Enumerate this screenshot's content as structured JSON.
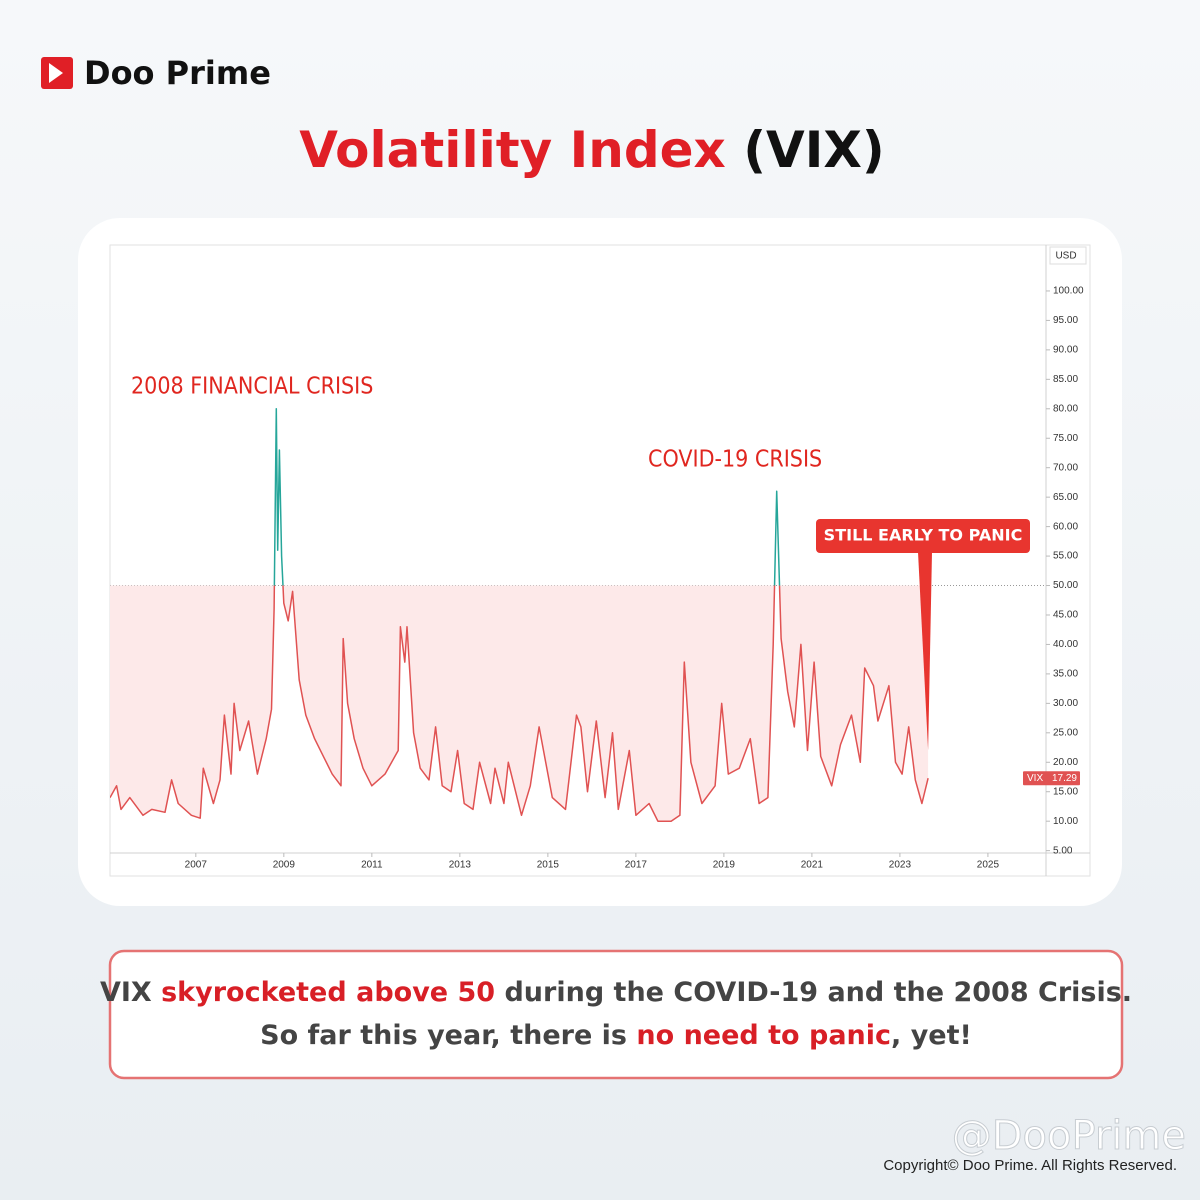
{
  "header": {
    "brand": "Doo Prime",
    "title": [
      {
        "text": "Volatility Index ",
        "highlight": true
      },
      {
        "text": "(VIX)",
        "highlight": false
      }
    ]
  },
  "chart_data": {
    "type": "line",
    "y_unit": "USD",
    "annotations": [
      "2008 FINANCIAL CRISIS",
      "COVID-19 CRISIS",
      "STILL EARLY TO PANIC"
    ],
    "baseline": 50,
    "above_color": "#26a69a",
    "fill_color": "#fde9e9",
    "xlim": [
      2005.05,
      2026.32
    ],
    "xticks": [
      2007,
      2009,
      2011,
      2013,
      2015,
      2017,
      2019,
      2021,
      2023,
      2025
    ],
    "ylim": [
      4.6,
      107.8
    ],
    "yticks": [
      {
        "value": 5,
        "label": "5.00"
      },
      {
        "value": 10,
        "label": "10.00"
      },
      {
        "value": 15,
        "label": "15.00"
      },
      {
        "value": 20,
        "label": "20.00"
      },
      {
        "value": 25,
        "label": "25.00"
      },
      {
        "value": 30,
        "label": "30.00"
      },
      {
        "value": 35,
        "label": "35.00"
      },
      {
        "value": 40,
        "label": "40.00"
      },
      {
        "value": 45,
        "label": "45.00"
      },
      {
        "value": 50,
        "label": "50.00"
      },
      {
        "value": 55,
        "label": "55.00"
      },
      {
        "value": 60,
        "label": "60.00"
      },
      {
        "value": 65,
        "label": "65.00"
      },
      {
        "value": 70,
        "label": "70.00"
      },
      {
        "value": 75,
        "label": "75.00"
      },
      {
        "value": 80,
        "label": "80.00"
      },
      {
        "value": 85,
        "label": "85.00"
      },
      {
        "value": 90,
        "label": "90.00"
      },
      {
        "value": 95,
        "label": "95.00"
      },
      {
        "value": 100,
        "label": "100.00"
      }
    ],
    "grid": false,
    "x": [
      2005.05,
      2005.2,
      2005.3,
      2005.5,
      2005.8,
      2006.0,
      2006.3,
      2006.45,
      2006.6,
      2006.9,
      2007.1,
      2007.17,
      2007.4,
      2007.55,
      2007.65,
      2007.8,
      2007.87,
      2008.0,
      2008.2,
      2008.4,
      2008.6,
      2008.72,
      2008.78,
      2008.83,
      2008.86,
      2008.9,
      2008.95,
      2009.0,
      2009.1,
      2009.2,
      2009.35,
      2009.5,
      2009.7,
      2009.9,
      2010.1,
      2010.3,
      2010.35,
      2010.45,
      2010.6,
      2010.8,
      2011.0,
      2011.3,
      2011.6,
      2011.65,
      2011.75,
      2011.8,
      2011.95,
      2012.1,
      2012.3,
      2012.45,
      2012.6,
      2012.8,
      2012.95,
      2013.1,
      2013.3,
      2013.45,
      2013.7,
      2013.8,
      2014.0,
      2014.1,
      2014.4,
      2014.6,
      2014.8,
      2014.95,
      2015.1,
      2015.4,
      2015.65,
      2015.75,
      2015.9,
      2016.1,
      2016.3,
      2016.47,
      2016.6,
      2016.85,
      2017.0,
      2017.3,
      2017.5,
      2017.8,
      2018.0,
      2018.1,
      2018.25,
      2018.5,
      2018.8,
      2018.95,
      2019.1,
      2019.35,
      2019.6,
      2019.8,
      2020.0,
      2020.12,
      2020.2,
      2020.3,
      2020.45,
      2020.6,
      2020.75,
      2020.9,
      2021.05,
      2021.2,
      2021.45,
      2021.65,
      2021.9,
      2022.1,
      2022.2,
      2022.4,
      2022.5,
      2022.75,
      2022.9,
      2023.05,
      2023.2,
      2023.35,
      2023.5,
      2023.64
    ],
    "series": [
      {
        "name": "VIX",
        "color": "#e05252",
        "values": [
          14,
          16,
          12,
          14,
          11,
          12,
          11.5,
          17,
          13,
          11,
          10.5,
          19,
          13,
          17,
          28,
          18,
          30,
          22,
          27,
          18,
          24,
          29,
          46,
          80,
          56,
          73,
          55,
          47,
          44,
          49,
          34,
          28,
          24,
          21,
          18,
          16,
          41,
          30,
          24,
          19,
          16,
          18,
          22,
          43,
          37,
          43,
          25,
          19,
          17,
          26,
          16,
          15,
          22,
          13,
          12,
          20,
          13,
          19,
          13,
          20,
          11,
          16,
          26,
          20,
          14,
          12,
          28,
          26,
          15,
          27,
          14,
          25,
          12,
          22,
          11,
          13,
          10,
          10,
          11,
          37,
          20,
          13,
          16,
          30,
          18,
          19,
          24,
          13,
          14,
          40,
          66,
          41,
          32,
          26,
          40,
          22,
          37,
          21,
          16,
          23,
          28,
          20,
          36,
          33,
          27,
          33,
          20,
          18,
          26,
          17,
          13,
          17.29
        ]
      }
    ]
  },
  "caption": {
    "lines": [
      [
        {
          "text": "VIX ",
          "highlight": false
        },
        {
          "text": "skyrocketed above 50",
          "highlight": true
        },
        {
          "text": " during the COVID-19 and the 2008 Crisis.",
          "highlight": false
        }
      ],
      [
        {
          "text": "So far this year, there is ",
          "highlight": false
        },
        {
          "text": "no need to panic",
          "highlight": true
        },
        {
          "text": ", yet!",
          "highlight": false
        }
      ]
    ]
  },
  "watermark": "@DooPrime",
  "copyright": "Copyright© Doo Prime. All Rights Reserved."
}
